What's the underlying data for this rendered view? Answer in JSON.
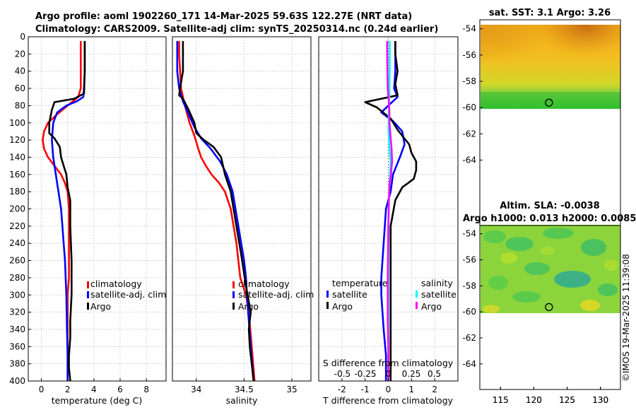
{
  "title_line1": "Argo profile: aoml 1902260_171 14-Mar-2025 59.63S 122.27E (NRT data)",
  "title_line2": "Climatology: CARS2009. Satellite-adj clim: synTS_20250314.nc (0.24d earlier)",
  "credit": "©IMOS 19-Mar-2025 11:39:08",
  "colors": {
    "climatology": "#ff0000",
    "satellite": "#0000ff",
    "argo": "#000000",
    "salinity_sat": "#00ffff",
    "salinity_argo": "#ff00ff"
  },
  "chart_data": [
    {
      "id": "temperature",
      "type": "line",
      "xlabel": "temperature (deg C)",
      "xlim": [
        -1,
        9.5
      ],
      "xticks": [
        0,
        2,
        4,
        6,
        8
      ],
      "xticklabels": [
        "0",
        "2",
        "4",
        "6",
        "8"
      ],
      "ylim": [
        0,
        400
      ],
      "yticks": [
        0,
        20,
        40,
        60,
        80,
        100,
        120,
        140,
        160,
        180,
        200,
        220,
        240,
        260,
        280,
        300,
        320,
        340,
        360,
        380,
        400
      ],
      "legend": [
        "climatology",
        "satellite-adj. clim",
        "Argo"
      ],
      "series": [
        {
          "name": "climatology",
          "color": "#ff0000",
          "x": [
            3.0,
            3.0,
            3.0,
            3.0,
            2.8,
            2.0,
            1.2,
            0.5,
            0.2,
            0.1,
            0.2,
            0.5,
            1.0,
            1.5,
            1.8,
            2.0,
            2.1,
            2.1,
            2.1,
            2.1,
            2.1,
            2.0,
            2.0,
            2.0,
            2.0
          ],
          "y": [
            5,
            20,
            40,
            60,
            70,
            80,
            90,
            100,
            110,
            120,
            130,
            140,
            150,
            160,
            170,
            180,
            200,
            220,
            240,
            260,
            280,
            300,
            330,
            360,
            400
          ]
        },
        {
          "name": "satellite-adj. clim",
          "color": "#0000ff",
          "x": [
            3.3,
            3.3,
            3.3,
            3.25,
            3.2,
            2.7,
            1.9,
            1.2,
            0.9,
            0.8,
            0.9,
            1.1,
            1.3,
            1.5,
            1.6,
            1.7,
            1.8,
            1.85,
            1.9,
            1.95,
            2.0,
            2.0
          ],
          "y": [
            5,
            20,
            40,
            60,
            70,
            75,
            80,
            88,
            100,
            120,
            140,
            160,
            180,
            200,
            220,
            240,
            260,
            280,
            300,
            340,
            370,
            400
          ]
        },
        {
          "name": "Argo",
          "color": "#000000",
          "x": [
            3.3,
            3.3,
            3.3,
            3.25,
            2.5,
            1.0,
            0.8,
            0.6,
            0.6,
            1.0,
            1.4,
            1.5,
            1.7,
            1.9,
            2.0,
            2.2,
            2.2,
            2.3,
            2.3,
            2.2,
            2.2,
            2.1,
            2.1,
            2.2
          ],
          "y": [
            5,
            20,
            40,
            66,
            72,
            76,
            85,
            100,
            112,
            118,
            128,
            140,
            150,
            160,
            175,
            190,
            220,
            260,
            300,
            330,
            350,
            370,
            385,
            400
          ]
        }
      ]
    },
    {
      "id": "salinity",
      "type": "line",
      "xlabel": "salinity",
      "xlim": [
        33.75,
        35.2
      ],
      "xticks": [
        34,
        34.5,
        35
      ],
      "xticklabels": [
        "34",
        "34.5",
        "35"
      ],
      "ylim": [
        0,
        400
      ],
      "legend": [
        "climatology",
        "satellite-adj. clim",
        "Argo"
      ],
      "series": [
        {
          "name": "climatology",
          "color": "#ff0000",
          "x": [
            33.82,
            33.82,
            33.83,
            33.84,
            33.88,
            33.93,
            33.98,
            34.02,
            34.05,
            34.1,
            34.16,
            34.24,
            34.3,
            34.36,
            34.42,
            34.46,
            34.52,
            34.55,
            34.58,
            34.61
          ],
          "y": [
            5,
            20,
            40,
            60,
            80,
            100,
            115,
            130,
            140,
            150,
            160,
            170,
            180,
            200,
            240,
            280,
            300,
            320,
            360,
            400
          ]
        },
        {
          "name": "satellite-adj. clim",
          "color": "#0000ff",
          "x": [
            33.8,
            33.8,
            33.8,
            33.82,
            33.86,
            33.92,
            33.98,
            34.05,
            34.15,
            34.25,
            34.32,
            34.38,
            34.44,
            34.5,
            34.52,
            34.53,
            34.55,
            34.57,
            34.6
          ],
          "y": [
            5,
            20,
            40,
            60,
            75,
            90,
            105,
            118,
            130,
            145,
            160,
            180,
            220,
            260,
            280,
            300,
            330,
            360,
            400
          ]
        },
        {
          "name": "Argo",
          "color": "#000000",
          "x": [
            33.86,
            33.86,
            33.86,
            33.83,
            33.82,
            33.86,
            33.92,
            33.98,
            34.0,
            34.08,
            34.18,
            34.26,
            34.3,
            34.36,
            34.42,
            34.48,
            34.52,
            34.57,
            34.55,
            34.56,
            34.58,
            34.6
          ],
          "y": [
            5,
            20,
            40,
            60,
            68,
            72,
            85,
            100,
            112,
            120,
            128,
            140,
            160,
            180,
            220,
            260,
            290,
            320,
            340,
            360,
            380,
            400
          ]
        }
      ]
    },
    {
      "id": "difference",
      "type": "line",
      "xlabel": "T difference from climatology",
      "xlabel_top": "S difference from climatology",
      "xlim": [
        -3,
        3
      ],
      "xticks": [
        -2,
        -1,
        0,
        1,
        2
      ],
      "xticklabels": [
        "-2",
        "-1",
        "0",
        "1",
        "2"
      ],
      "top_ticks": [
        -0.5,
        -0.25,
        0,
        0.25,
        0.5
      ],
      "top_ticklabels": [
        "-0.5",
        "-0.25",
        "0",
        "0.25",
        "0.5"
      ],
      "ylim": [
        0,
        400
      ],
      "legend_left_title": "temperature",
      "legend_left": [
        "satellite",
        "Argo"
      ],
      "legend_right_title": "salinity",
      "legend_right": [
        "satellite",
        "Argo"
      ],
      "series": [
        {
          "name": "temperature satellite",
          "color": "#0000ff",
          "x": [
            0.3,
            0.3,
            0.3,
            0.25,
            0.4,
            0.0,
            -0.3,
            0.2,
            0.6,
            0.7,
            0.5,
            0.2,
            0.1,
            -0.1,
            -0.2,
            -0.3,
            -0.3,
            -0.2,
            -0.1,
            -0.1
          ],
          "y": [
            5,
            20,
            40,
            60,
            70,
            80,
            88,
            98,
            110,
            125,
            140,
            160,
            180,
            200,
            240,
            280,
            300,
            340,
            370,
            400
          ]
        },
        {
          "name": "temperature Argo",
          "color": "#000000",
          "x": [
            0.3,
            0.3,
            0.4,
            0.3,
            0.4,
            -1.0,
            -0.5,
            0.1,
            0.4,
            0.6,
            0.9,
            1.0,
            1.2,
            1.2,
            1.1,
            0.6,
            0.3,
            0.1,
            0.1,
            0.1,
            0.1
          ],
          "y": [
            5,
            20,
            40,
            55,
            68,
            76,
            82,
            95,
            108,
            115,
            125,
            135,
            145,
            155,
            165,
            175,
            190,
            220,
            260,
            330,
            400
          ]
        },
        {
          "name": "salinity satellite",
          "color": "#00ffff",
          "x": [
            0.06,
            0.06,
            0.06,
            0.05,
            0.04,
            0.02,
            0.01,
            0.05,
            0.1,
            0.08,
            0.04,
            0.02,
            0.0,
            0.0
          ],
          "y": [
            5,
            20,
            40,
            60,
            75,
            90,
            110,
            130,
            145,
            160,
            175,
            200,
            260,
            400
          ]
        },
        {
          "name": "salinity Argo",
          "color": "#ff00ff",
          "x": [
            -0.05,
            -0.05,
            -0.04,
            -0.02,
            0.02,
            0.05,
            0.05,
            0.09,
            0.14,
            0.16,
            0.12,
            0.06,
            0.02,
            0.0,
            -0.02,
            -0.02,
            0.0,
            0.0,
            0.0
          ],
          "y": [
            5,
            20,
            40,
            60,
            75,
            88,
            100,
            115,
            130,
            145,
            158,
            170,
            190,
            220,
            280,
            330,
            360,
            380,
            400
          ]
        }
      ]
    },
    {
      "id": "sst_map",
      "type": "heatmap",
      "title": "sat. SST: 3.1 Argo: 3.26",
      "xlim": [
        112,
        133
      ],
      "ylim": [
        -66.7,
        -53.8
      ],
      "xticks": [
        115,
        120,
        125,
        130
      ],
      "yticks": [
        -54,
        -56,
        -58,
        -60,
        -62,
        -64
      ],
      "yticklabels": [
        "-54",
        "-56",
        "-58",
        "-60",
        "-62",
        "-64"
      ],
      "data_bottom": -60.1,
      "marker": {
        "lon": 122.27,
        "lat": -59.63
      }
    },
    {
      "id": "sla_map",
      "type": "heatmap",
      "title_line1": "Altim. SLA: -0.0038",
      "title_line2": "Argo h1000: 0.013 h2000: 0.0085",
      "xlim": [
        112,
        133
      ],
      "ylim": [
        -66.7,
        -53.8
      ],
      "xticks": [
        115,
        120,
        125,
        130
      ],
      "yticks": [
        -54,
        -56,
        -58,
        -60,
        -62,
        -64
      ],
      "yticklabels": [
        "-54",
        "-56",
        "-58",
        "-60",
        "-62",
        "-64"
      ],
      "data_bottom": -60.1,
      "marker": {
        "lon": 122.27,
        "lat": -59.63
      }
    }
  ]
}
